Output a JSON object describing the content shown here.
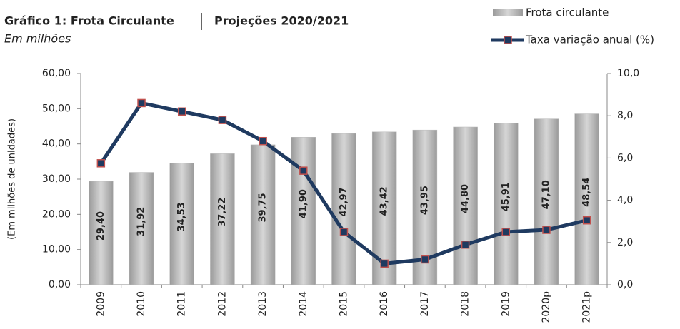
{
  "chart_data": {
    "type": "bar-line",
    "title": [
      "Gráfico 1: Frota Circulante",
      "Projeções 2020/2021"
    ],
    "subtitle": "Em milhões",
    "ylabel": "(Em milhões de unidades)",
    "categories": [
      "2009",
      "2010",
      "2011",
      "2012",
      "2013",
      "2014",
      "2015",
      "2016",
      "2017",
      "2018",
      "2019",
      "2020p",
      "2021p"
    ],
    "series": [
      {
        "name": "Frota circulante",
        "type": "bar",
        "color": "#b9b9b9",
        "values": [
          29.4,
          31.92,
          34.53,
          37.22,
          39.75,
          41.9,
          42.97,
          43.42,
          43.95,
          44.8,
          45.91,
          47.1,
          48.54
        ],
        "value_labels": [
          "29,40",
          "31,92",
          "34,53",
          "37,22",
          "39,75",
          "41,90",
          "42,97",
          "43,42",
          "43,95",
          "44,80",
          "45,91",
          "47,10",
          "48,54"
        ]
      },
      {
        "name": "Taxa variação anual (%)",
        "type": "line",
        "axis": "y2",
        "color": "#1f3a60",
        "marker_edge": "#c0504d",
        "values": [
          5.75,
          8.6,
          8.2,
          7.8,
          6.8,
          5.4,
          2.5,
          1.0,
          1.2,
          1.9,
          2.5,
          2.6,
          3.05
        ]
      }
    ],
    "ylim": [
      0,
      60
    ],
    "yticks": [
      {
        "value": 0,
        "label": "0,00"
      },
      {
        "value": 10,
        "label": "10,00"
      },
      {
        "value": 20,
        "label": "20,00"
      },
      {
        "value": 30,
        "label": "30,00"
      },
      {
        "value": 40,
        "label": "40,00"
      },
      {
        "value": 50,
        "label": "50,00"
      },
      {
        "value": 60,
        "label": "60,00"
      }
    ],
    "y2lim": [
      0,
      10
    ],
    "y2ticks": [
      {
        "value": 0,
        "label": "0,0"
      },
      {
        "value": 2,
        "label": "2,0"
      },
      {
        "value": 4,
        "label": "4,0"
      },
      {
        "value": 6,
        "label": "6,0"
      },
      {
        "value": 8,
        "label": "8,0"
      },
      {
        "value": 10,
        "label": "10,0"
      }
    ],
    "grid": false,
    "legend": "top-right"
  }
}
